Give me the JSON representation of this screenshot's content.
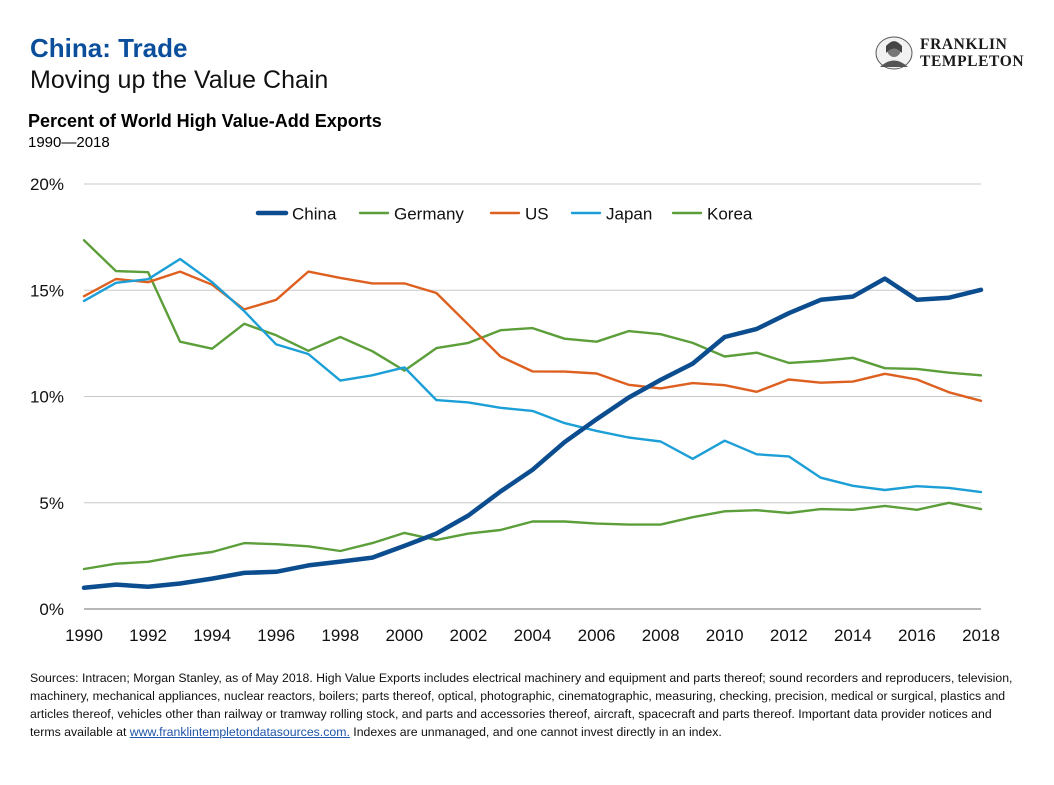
{
  "header": {
    "title": "China: Trade",
    "subtitle": "Moving up the Value Chain"
  },
  "logo": {
    "line1": "FRANKLIN",
    "line2": "TEMPLETON",
    "icon": "franklin-portrait-icon"
  },
  "chart_data": {
    "type": "line",
    "title": "Percent of World High Value-Add Exports",
    "subtitle": "1990—2018",
    "xlabel": "",
    "ylabel": "",
    "x": [
      1990,
      1991,
      1992,
      1993,
      1994,
      1995,
      1996,
      1997,
      1998,
      1999,
      2000,
      2001,
      2002,
      2003,
      2004,
      2005,
      2006,
      2007,
      2008,
      2009,
      2010,
      2011,
      2012,
      2013,
      2014,
      2015,
      2016,
      2017,
      2018
    ],
    "x_ticks": [
      "1990",
      "1992",
      "1994",
      "1996",
      "1998",
      "2000",
      "2002",
      "2004",
      "2006",
      "2008",
      "2010",
      "2012",
      "2014",
      "2016",
      "2018"
    ],
    "y_ticks": [
      "0%",
      "5%",
      "10%",
      "15%",
      "20%"
    ],
    "ylim": [
      0,
      20
    ],
    "grid": true,
    "legend_position": "top",
    "series": [
      {
        "name": "China",
        "color": "#0b4d8f",
        "width": 4.5,
        "values": [
          1.0,
          1.15,
          1.05,
          1.2,
          1.43,
          1.7,
          1.75,
          2.05,
          2.23,
          2.42,
          2.97,
          3.55,
          4.4,
          5.53,
          6.55,
          7.85,
          8.93,
          9.95,
          10.78,
          11.55,
          12.8,
          13.18,
          13.92,
          14.55,
          14.7,
          15.55,
          14.55,
          14.65,
          15.02
        ]
      },
      {
        "name": "Germany",
        "color": "#5c9e3a",
        "width": 2.4,
        "values": [
          17.35,
          15.9,
          15.85,
          12.58,
          12.25,
          13.42,
          12.88,
          12.15,
          12.8,
          12.13,
          11.22,
          12.28,
          12.52,
          13.12,
          13.22,
          12.72,
          12.58,
          13.08,
          12.93,
          12.52,
          11.88,
          12.06,
          11.58,
          11.67,
          11.82,
          11.33,
          11.3,
          11.12,
          11.0
        ]
      },
      {
        "name": "US",
        "color": "#dd6020",
        "width": 2.4,
        "values": [
          14.72,
          15.53,
          15.38,
          15.88,
          15.26,
          14.1,
          14.55,
          15.88,
          15.58,
          15.32,
          15.32,
          14.87,
          13.38,
          11.88,
          11.18,
          11.17,
          11.08,
          10.55,
          10.38,
          10.63,
          10.53,
          10.22,
          10.8,
          10.65,
          10.7,
          11.07,
          10.8,
          10.2,
          9.8
        ]
      },
      {
        "name": "Japan",
        "color": "#1b9fd6",
        "width": 2.4,
        "values": [
          14.5,
          15.35,
          15.52,
          16.47,
          15.38,
          14.02,
          12.45,
          12.0,
          10.75,
          11.0,
          11.37,
          9.83,
          9.72,
          9.47,
          9.32,
          8.75,
          8.38,
          8.07,
          7.88,
          7.07,
          7.92,
          7.28,
          7.18,
          6.18,
          5.8,
          5.6,
          5.78,
          5.7,
          5.5
        ]
      },
      {
        "name": "Korea",
        "color": "#5c9e3a",
        "width": 2.4,
        "values": [
          1.88,
          2.13,
          2.22,
          2.5,
          2.68,
          3.1,
          3.05,
          2.95,
          2.73,
          3.1,
          3.58,
          3.25,
          3.55,
          3.72,
          4.12,
          4.12,
          4.02,
          3.97,
          3.97,
          4.32,
          4.6,
          4.65,
          4.52,
          4.7,
          4.67,
          4.85,
          4.67,
          5.0,
          4.7
        ]
      }
    ]
  },
  "footer": {
    "sources_text": "Sources: Intracen; Morgan Stanley, as of May 2018. High Value Exports includes electrical machinery and equipment and parts thereof; sound recorders and reproducers, television, machinery, mechanical appliances, nuclear reactors, boilers; parts thereof, optical, photographic, cinematographic, measuring, checking, precision, medical or surgical, plastics and articles thereof, vehicles other than railway or tramway rolling stock, and parts and accessories thereof, aircraft, spacecraft and parts thereof. Important data provider notices and terms available at ",
    "link_text": "www.franklintempletondatasources.com.",
    "sources_tail": " Indexes are unmanaged, and one cannot invest directly in an index."
  }
}
